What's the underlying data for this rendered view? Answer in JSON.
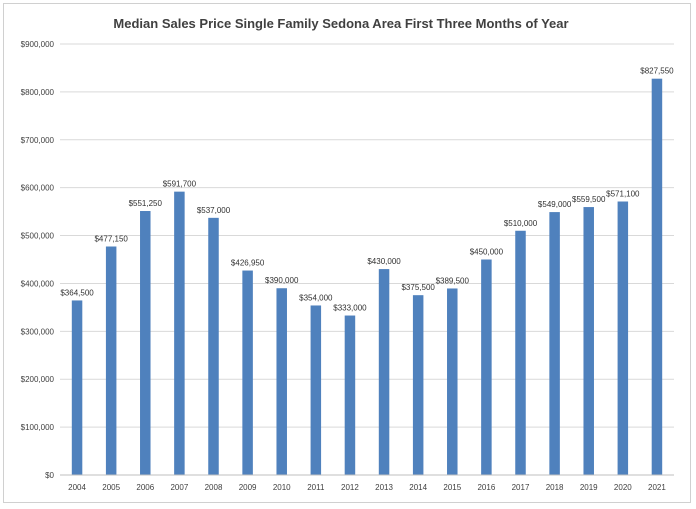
{
  "chart_data": {
    "type": "bar",
    "title": "Median Sales Price Single Family Sedona Area  First Three Months of Year",
    "categories": [
      "2004",
      "2005",
      "2006",
      "2007",
      "2008",
      "2009",
      "2010",
      "2011",
      "2012",
      "2013",
      "2014",
      "2015",
      "2016",
      "2017",
      "2018",
      "2019",
      "2020",
      "2021"
    ],
    "values": [
      364500,
      477150,
      551250,
      591700,
      537000,
      426950,
      390000,
      354000,
      333000,
      430000,
      375500,
      389500,
      450000,
      510000,
      549000,
      559500,
      571100,
      827550
    ],
    "data_labels": [
      "$364,500",
      "$477,150",
      "$551,250",
      "$591,700",
      "$537,000",
      "$426,950",
      "$390,000",
      "$354,000",
      "$333,000",
      "$430,000",
      "$375,500",
      "$389,500",
      "$450,000",
      "$510,000",
      "$549,000",
      "$559,500",
      "$571,100",
      "$827,550"
    ],
    "ylim": [
      0,
      900000
    ],
    "yticks": [
      0,
      100000,
      200000,
      300000,
      400000,
      500000,
      600000,
      700000,
      800000,
      900000
    ],
    "ytick_labels": [
      "$0",
      "$100,000",
      "$200,000",
      "$300,000",
      "$400,000",
      "$500,000",
      "$600,000",
      "$700,000",
      "$800,000",
      "$900,000"
    ],
    "xlabel": "",
    "ylabel": "",
    "grid": true,
    "legend": "none",
    "bar_color": "#4f81bd",
    "grid_color": "#d9d9d9"
  }
}
